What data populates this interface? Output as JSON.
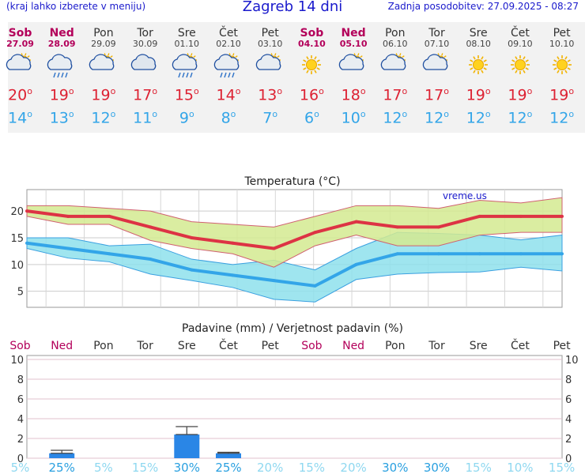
{
  "header": {
    "menu_hint": "(kraj lahko izberete v meniju)",
    "title": "Zagreb 14 dni",
    "updated": "Zadnja posodobitev: 27.09.2025 - 08:27"
  },
  "days": [
    {
      "name": "Sob",
      "date": "27.09",
      "weekend": true,
      "icon": "partly-cloudy-icon",
      "tmax": "20",
      "tmin": "14"
    },
    {
      "name": "Ned",
      "date": "28.09",
      "weekend": true,
      "icon": "rain-cloud-icon",
      "tmax": "19",
      "tmin": "13"
    },
    {
      "name": "Pon",
      "date": "29.09",
      "weekend": false,
      "icon": "partly-cloudy-icon",
      "tmax": "19",
      "tmin": "12"
    },
    {
      "name": "Tor",
      "date": "30.09",
      "weekend": false,
      "icon": "cloudy-icon",
      "tmax": "17",
      "tmin": "11"
    },
    {
      "name": "Sre",
      "date": "01.10",
      "weekend": false,
      "icon": "sun-rain-icon",
      "tmax": "15",
      "tmin": "9"
    },
    {
      "name": "Čet",
      "date": "02.10",
      "weekend": false,
      "icon": "sun-rain-icon",
      "tmax": "14",
      "tmin": "8"
    },
    {
      "name": "Pet",
      "date": "03.10",
      "weekend": false,
      "icon": "partly-cloudy-icon",
      "tmax": "13",
      "tmin": "7"
    },
    {
      "name": "Sob",
      "date": "04.10",
      "weekend": true,
      "icon": "sun-icon",
      "tmax": "16",
      "tmin": "6"
    },
    {
      "name": "Ned",
      "date": "05.10",
      "weekend": true,
      "icon": "partly-cloudy-icon",
      "tmax": "18",
      "tmin": "10"
    },
    {
      "name": "Pon",
      "date": "06.10",
      "weekend": false,
      "icon": "partly-cloudy-icon",
      "tmax": "17",
      "tmin": "12"
    },
    {
      "name": "Tor",
      "date": "07.10",
      "weekend": false,
      "icon": "partly-cloudy-icon",
      "tmax": "17",
      "tmin": "12"
    },
    {
      "name": "Sre",
      "date": "08.10",
      "weekend": false,
      "icon": "sun-icon",
      "tmax": "19",
      "tmin": "12"
    },
    {
      "name": "Čet",
      "date": "09.10",
      "weekend": false,
      "icon": "sun-icon",
      "tmax": "19",
      "tmin": "12"
    },
    {
      "name": "Pet",
      "date": "10.10",
      "weekend": false,
      "icon": "sun-icon",
      "tmax": "19",
      "tmin": "12"
    }
  ],
  "degree_mark": "o",
  "colors": {
    "max": "#dd3344",
    "min": "#33a5e8",
    "max_band": "#d4ea90",
    "min_band": "#8ee0ec",
    "rain": "#2a86e6",
    "weekend": "#b3005a"
  },
  "chart_data": [
    {
      "type": "line",
      "title": "Temperatura (°C)",
      "watermark": "vreme.us",
      "ylim": [
        2,
        24
      ],
      "yticks": [
        "5",
        "10",
        "15",
        "20"
      ],
      "grid": true,
      "series": [
        {
          "values": [
            20,
            19,
            19,
            17,
            15,
            14,
            13,
            16,
            18,
            17,
            17,
            19,
            19,
            19
          ]
        },
        {
          "values": [
            14,
            13,
            12,
            11,
            9,
            8,
            7,
            6,
            10,
            12,
            12,
            12,
            12,
            12
          ]
        }
      ],
      "max_band": {
        "upper": [
          21,
          21,
          20.5,
          20,
          18,
          17.5,
          17,
          19,
          21,
          21,
          20.5,
          22,
          21.5,
          22.5
        ],
        "lower": [
          19,
          17.5,
          17.5,
          14.5,
          13,
          12,
          9.5,
          13.5,
          15.5,
          13.5,
          13.5,
          15.5,
          16,
          16
        ]
      },
      "min_band": {
        "upper": [
          15,
          15,
          13.5,
          13.8,
          11,
          10,
          10.8,
          9,
          13,
          16,
          15.8,
          15.5,
          14.6,
          15.5
        ],
        "lower": [
          13,
          11.2,
          10.5,
          8.2,
          7,
          5.7,
          3.5,
          3,
          7.2,
          8.2,
          8.5,
          8.6,
          9.5,
          8.8
        ]
      }
    },
    {
      "type": "bar",
      "title": "Padavine (mm) / Verjetnost padavin (%)",
      "ylim": [
        0,
        10
      ],
      "yticks": [
        "0",
        "2",
        "4",
        "6",
        "8",
        "10"
      ],
      "categories": [
        "Sob",
        "Ned",
        "Pon",
        "Tor",
        "Sre",
        "Čet",
        "Pet",
        "Sob",
        "Ned",
        "Pon",
        "Tor",
        "Sre",
        "Čet",
        "Pet"
      ],
      "values": [
        0,
        0.5,
        0,
        0,
        2.4,
        0.5,
        0,
        0,
        0,
        0,
        0,
        0,
        0,
        0
      ],
      "error_high": [
        0,
        0.8,
        0,
        0,
        3.2,
        0.6,
        0,
        0,
        0,
        0,
        0,
        0,
        0,
        0
      ],
      "probabilities": [
        "5%",
        "25%",
        "5%",
        "15%",
        "30%",
        "25%",
        "20%",
        "15%",
        "20%",
        "30%",
        "30%",
        "15%",
        "10%",
        "15%"
      ]
    }
  ]
}
